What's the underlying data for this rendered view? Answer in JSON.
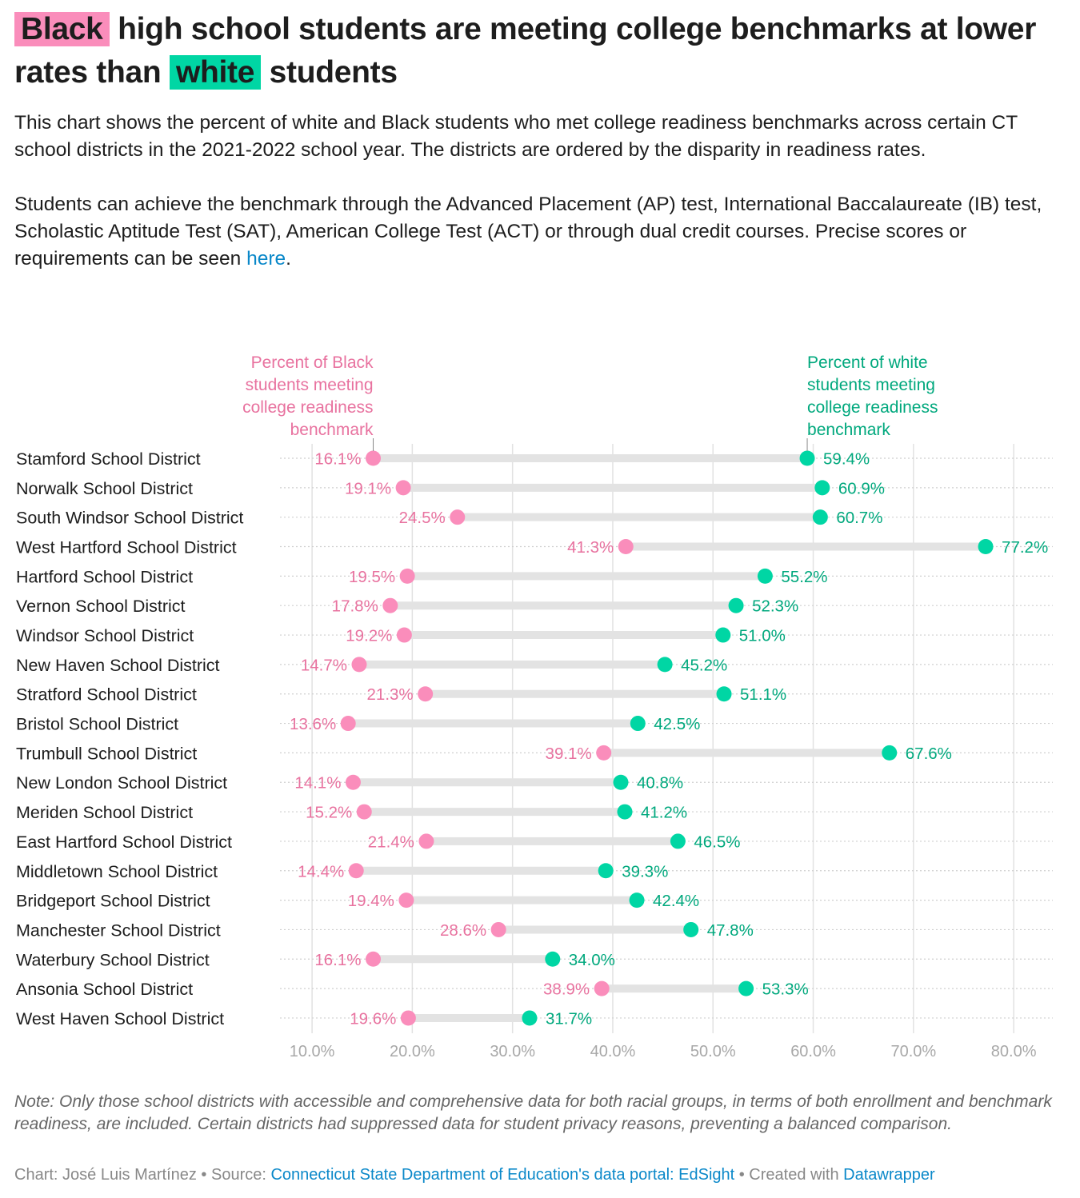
{
  "title": {
    "pre": "Black",
    "mid": " high school students are meeting college benchmarks at lower rates than ",
    "highlight2": "white",
    "post": " students"
  },
  "description": {
    "p1": "This chart shows the percent of white and Black students who met college readiness benchmarks across certain CT school districts in the 2021-2022 school year. The districts are ordered by the disparity in readiness rates.",
    "p2_text": "Students can achieve the benchmark through the Advanced Placement (AP) test, International Baccalaureate (IB) test, Scholastic Aptitude Test (SAT), American College Test (ACT) or through dual credit courses. Precise scores or requirements can be seen ",
    "p2_link": "here",
    "p2_end": "."
  },
  "colors": {
    "black_students": "#fa8dbb",
    "white_students": "#00d6a4",
    "pink_text": "#e8729f",
    "green_text": "#00a87d",
    "bar": "#e3e3e3"
  },
  "chart_data": {
    "type": "dot-range",
    "xlim": [
      6.8,
      83.9
    ],
    "x_ticks": [
      "10.0%",
      "20.0%",
      "30.0%",
      "40.0%",
      "50.0%",
      "60.0%",
      "70.0%",
      "80.0%"
    ],
    "x_tick_values": [
      10,
      20,
      30,
      40,
      50,
      60,
      70,
      80
    ],
    "grid": true,
    "annotations": {
      "black": [
        "Percent of Black",
        "students meeting",
        "college readiness",
        "benchmark"
      ],
      "white": [
        "Percent of white",
        "students meeting",
        "college readiness",
        "benchmark"
      ]
    },
    "categories": [
      "Stamford School District",
      "Norwalk School District",
      "South Windsor School District",
      "West Hartford School District",
      "Hartford School District",
      "Vernon School District",
      "Windsor School District",
      "New Haven School District",
      "Stratford School District",
      "Bristol School District",
      "Trumbull School District",
      "New London School District",
      "Meriden School District",
      "East Hartford School District",
      "Middletown School District",
      "Bridgeport School District",
      "Manchester School District",
      "Waterbury School District",
      "Ansonia School District",
      "West Haven School District"
    ],
    "series": [
      {
        "name": "Percent of Black students meeting college readiness benchmark",
        "values": [
          16.1,
          19.1,
          24.5,
          41.3,
          19.5,
          17.8,
          19.2,
          14.7,
          21.3,
          13.6,
          39.1,
          14.1,
          15.2,
          21.4,
          14.4,
          19.4,
          28.6,
          16.1,
          38.9,
          19.6
        ]
      },
      {
        "name": "Percent of white students meeting college readiness benchmark",
        "values": [
          59.4,
          60.9,
          60.7,
          77.2,
          55.2,
          52.3,
          51.0,
          45.2,
          51.1,
          42.5,
          67.6,
          40.8,
          41.2,
          46.5,
          39.3,
          42.4,
          47.8,
          34.0,
          53.3,
          31.7
        ]
      }
    ]
  },
  "note": "Note: Only those school districts with accessible and comprehensive data for both racial groups, in terms of both enrollment and benchmark readiness, are included. Certain districts had suppressed data for student privacy reasons, preventing a balanced comparison.",
  "credits": {
    "chart": "Chart: José Luis Martínez • Source: ",
    "source_link": "Connecticut State Department of Education's data portal: EdSight",
    "created": " • Created with ",
    "dw_link": "Datawrapper"
  }
}
